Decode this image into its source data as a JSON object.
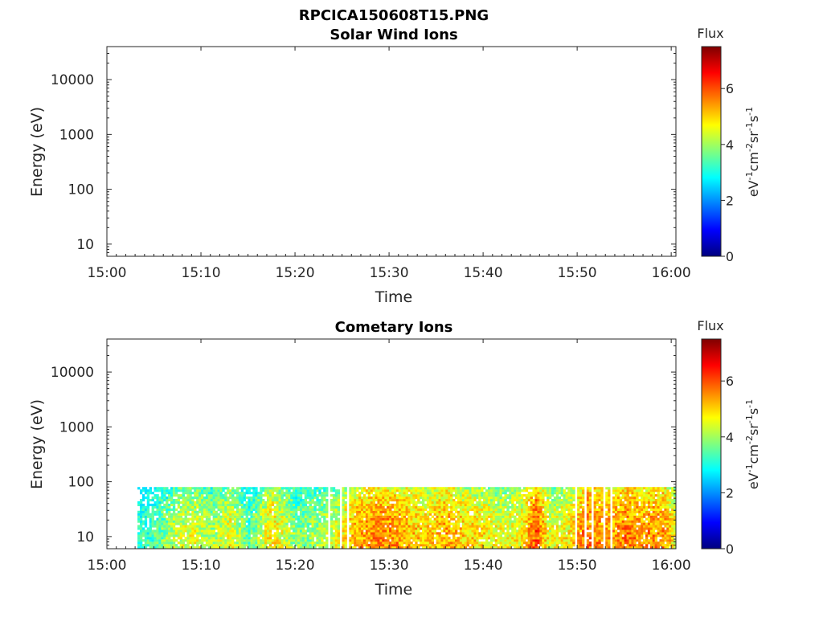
{
  "figure": {
    "title": "RPCICA150608T15.PNG"
  },
  "colorbar": {
    "title": "Flux",
    "unit_label_base": [
      "eV",
      "cm",
      "sr",
      "s"
    ],
    "unit_label_exp": [
      "-1",
      "-2",
      "-1",
      "-1"
    ],
    "ticks": [
      "0",
      "2",
      "4",
      "6"
    ],
    "range": [
      0,
      7.5
    ],
    "colormap": "jet",
    "colors": [
      "#00007f",
      "#0000ff",
      "#007fff",
      "#00ffff",
      "#7fff7f",
      "#ffff00",
      "#ff7f00",
      "#ff0000",
      "#7f0000"
    ]
  },
  "chart_data": [
    {
      "type": "heatmap",
      "title": "Solar Wind Ions",
      "xlabel": "Time",
      "ylabel": "Energy (eV)",
      "x_ticks": [
        "15:00",
        "15:10",
        "15:20",
        "15:30",
        "15:40",
        "15:50",
        "16:00"
      ],
      "x_range_minutes": [
        0,
        60.5
      ],
      "y_ticks": [
        "10",
        "100",
        "1000",
        "10000"
      ],
      "y_scale": "log",
      "y_range": [
        6,
        40000
      ],
      "cells": []
    },
    {
      "type": "heatmap",
      "title": "Cometary Ions",
      "xlabel": "Time",
      "ylabel": "Energy (eV)",
      "x_ticks": [
        "15:00",
        "15:10",
        "15:20",
        "15:30",
        "15:40",
        "15:50",
        "16:00"
      ],
      "x_range_minutes": [
        0,
        60.5
      ],
      "y_ticks": [
        "10",
        "100",
        "1000",
        "10000"
      ],
      "y_scale": "log",
      "y_range": [
        6,
        40000
      ],
      "data_time_range_minutes": [
        3,
        60.5
      ],
      "data_energy_range": [
        6,
        80
      ],
      "flux_profile": [
        {
          "t": 3.0,
          "flux": 3.0
        },
        {
          "t": 5.0,
          "flux": 3.4
        },
        {
          "t": 7.0,
          "flux": 4.2
        },
        {
          "t": 9.0,
          "flux": 4.5
        },
        {
          "t": 11.0,
          "flux": 4.0
        },
        {
          "t": 13.0,
          "flux": 4.6
        },
        {
          "t": 15.0,
          "flux": 3.5
        },
        {
          "t": 17.5,
          "flux": 5.0
        },
        {
          "t": 20.0,
          "flux": 3.8
        },
        {
          "t": 22.0,
          "flux": 4.0
        },
        {
          "t": 24.0,
          "flux": 4.3
        },
        {
          "t": 26.0,
          "flux": 5.2
        },
        {
          "t": 28.0,
          "flux": 5.5
        },
        {
          "t": 30.0,
          "flux": 5.6
        },
        {
          "t": 32.0,
          "flux": 5.2
        },
        {
          "t": 34.0,
          "flux": 5.0
        },
        {
          "t": 36.0,
          "flux": 5.4
        },
        {
          "t": 38.0,
          "flux": 5.0
        },
        {
          "t": 40.0,
          "flux": 4.8
        },
        {
          "t": 42.0,
          "flux": 4.6
        },
        {
          "t": 44.0,
          "flux": 4.7
        },
        {
          "t": 45.5,
          "flux": 6.0
        },
        {
          "t": 47.0,
          "flux": 4.5
        },
        {
          "t": 49.0,
          "flux": 4.8
        },
        {
          "t": 51.0,
          "flux": 5.8
        },
        {
          "t": 53.0,
          "flux": 5.4
        },
        {
          "t": 55.0,
          "flux": 5.7
        },
        {
          "t": 57.0,
          "flux": 5.5
        },
        {
          "t": 59.0,
          "flux": 5.6
        },
        {
          "t": 60.5,
          "flux": 4.5
        }
      ]
    }
  ]
}
